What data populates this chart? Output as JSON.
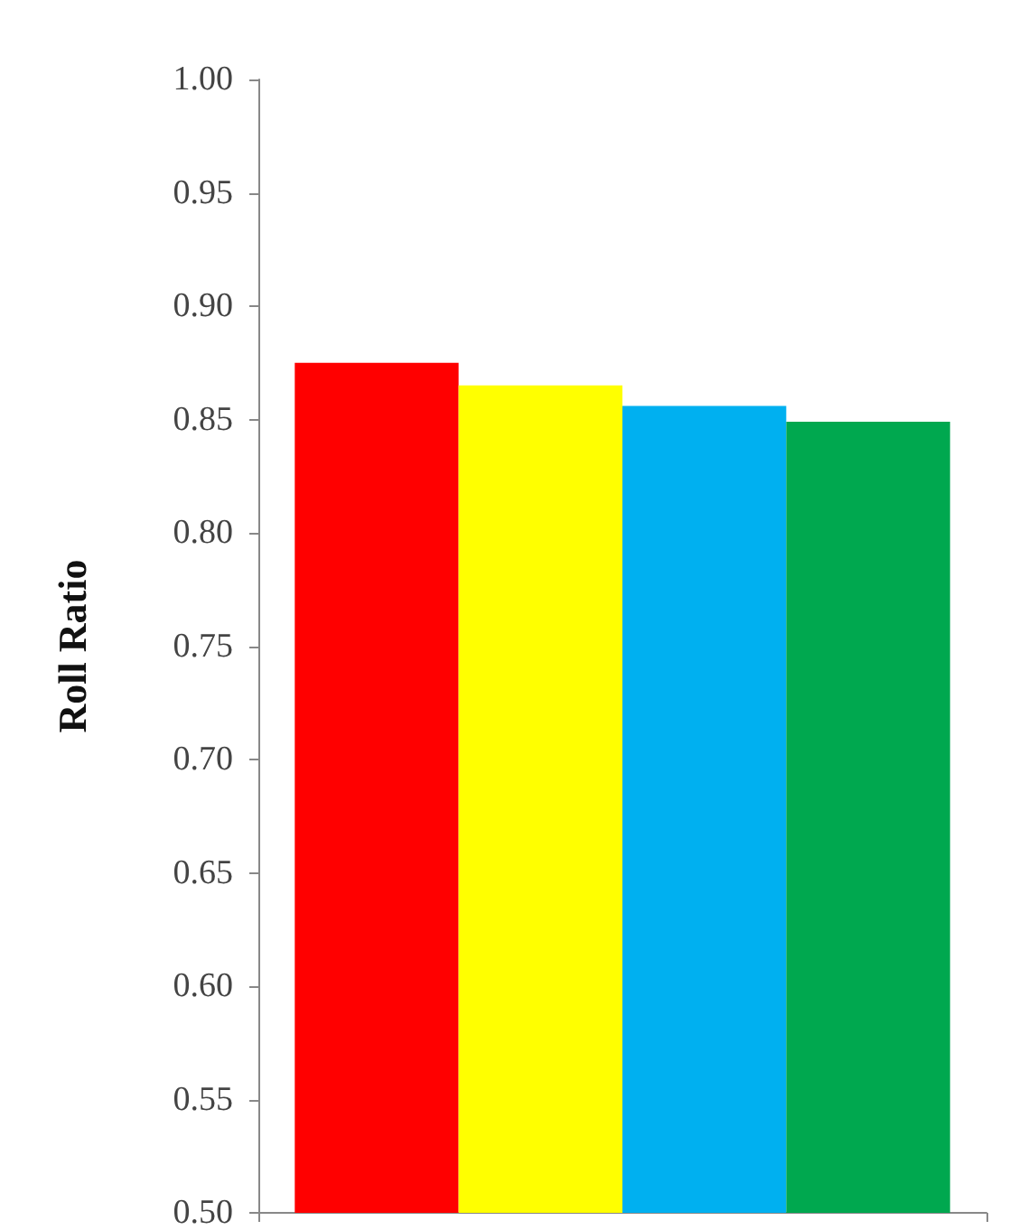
{
  "chart_data": {
    "type": "bar",
    "ylabel": "Roll Ratio",
    "categories": [
      null
    ],
    "series": [
      {
        "color": "#ff0000",
        "values": [
          0.875
        ]
      },
      {
        "color": "#ffff00",
        "values": [
          0.865
        ]
      },
      {
        "color": "#00b0f0",
        "values": [
          0.856
        ]
      },
      {
        "color": "#00a84f",
        "values": [
          0.849
        ]
      }
    ],
    "ylim": [
      0.5,
      1.0
    ],
    "yticks": [
      {
        "value": 0.5,
        "label": "0.50"
      },
      0.55,
      {
        "value": 0.6,
        "label": "0.60"
      },
      0.65,
      {
        "value": 0.7,
        "label": "0.70"
      },
      0.75,
      {
        "value": 0.8,
        "label": "0.80"
      },
      0.85,
      {
        "value": 0.9,
        "label": "0.90"
      },
      0.95,
      {
        "value": 1.0,
        "label": "1.00"
      }
    ],
    "grid": false
  }
}
